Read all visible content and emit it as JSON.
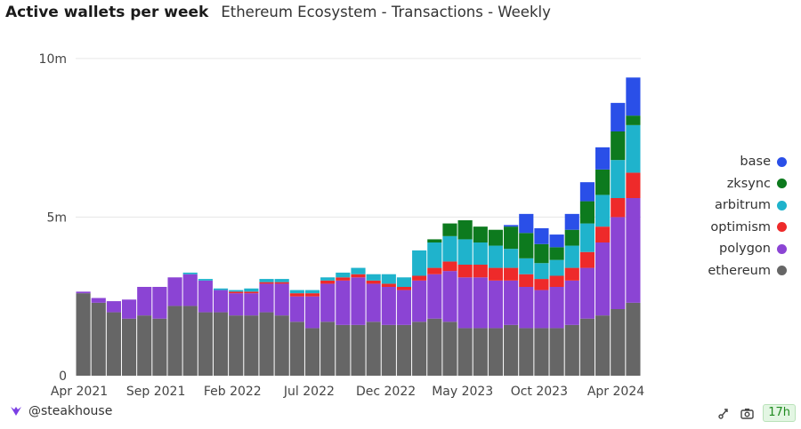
{
  "header": {
    "title": "Active wallets per week",
    "subtitle": "Ethereum Ecosystem - Transactions - Weekly"
  },
  "footer": {
    "brand": "@steakhouse",
    "brand_icon": "steakhouse-logo-icon",
    "refresh_age": "17h"
  },
  "chart_data": {
    "type": "bar",
    "stacked": true,
    "x_ticks": [
      "Apr 2021",
      "Sep 2021",
      "Feb 2022",
      "Jul 2022",
      "Dec 2022",
      "May 2023",
      "Oct 2023",
      "Apr 2024"
    ],
    "y_ticks": [
      "0",
      "5m",
      "10m"
    ],
    "y_tick_values": [
      0,
      5,
      10
    ],
    "ylim": [
      0,
      10.5
    ],
    "y_unit": "millions",
    "grid": true,
    "legend_position": "right",
    "periods": [
      "Apr 2021",
      "May 2021",
      "Jun 2021",
      "Jul 2021",
      "Aug 2021",
      "Sep 2021",
      "Oct 2021",
      "Nov 2021",
      "Dec 2021",
      "Jan 2022",
      "Feb 2022",
      "Mar 2022",
      "Apr 2022",
      "May 2022",
      "Jun 2022",
      "Jul 2022",
      "Aug 2022",
      "Sep 2022",
      "Oct 2022",
      "Nov 2022",
      "Dec 2022",
      "Jan 2023",
      "Feb 2023",
      "Mar 2023",
      "Apr 2023",
      "May 2023",
      "Jun 2023",
      "Jul 2023",
      "Aug 2023",
      "Sep 2023",
      "Oct 2023",
      "Nov 2023",
      "Dec 2023",
      "Jan 2024",
      "Feb 2024",
      "Mar 2024",
      "Apr 2024"
    ],
    "series": [
      {
        "name": "ethereum",
        "color": "#666666",
        "values": [
          2.6,
          2.3,
          2.0,
          1.8,
          1.9,
          1.8,
          2.2,
          2.2,
          2.0,
          2.0,
          1.9,
          1.9,
          2.0,
          1.9,
          1.7,
          1.5,
          1.7,
          1.6,
          1.6,
          1.7,
          1.6,
          1.6,
          1.7,
          1.8,
          1.7,
          1.5,
          1.5,
          1.5,
          1.6,
          1.5,
          1.5,
          1.5,
          1.6,
          1.8,
          1.9,
          2.1,
          2.3
        ]
      },
      {
        "name": "polygon",
        "color": "#8b44d4",
        "values": [
          0.05,
          0.15,
          0.35,
          0.6,
          0.9,
          1.0,
          0.9,
          1.0,
          1.0,
          0.7,
          0.7,
          0.7,
          0.9,
          1.0,
          0.8,
          1.0,
          1.2,
          1.4,
          1.5,
          1.2,
          1.2,
          1.1,
          1.3,
          1.4,
          1.6,
          1.6,
          1.6,
          1.5,
          1.4,
          1.3,
          1.2,
          1.3,
          1.4,
          1.6,
          2.3,
          2.9,
          3.3
        ]
      },
      {
        "name": "optimism",
        "color": "#ee2a2a",
        "values": [
          0.0,
          0.0,
          0.0,
          0.0,
          0.0,
          0.0,
          0.0,
          0.0,
          0.0,
          0.0,
          0.05,
          0.05,
          0.05,
          0.05,
          0.1,
          0.1,
          0.1,
          0.1,
          0.1,
          0.1,
          0.1,
          0.1,
          0.15,
          0.2,
          0.3,
          0.4,
          0.4,
          0.4,
          0.4,
          0.4,
          0.35,
          0.35,
          0.4,
          0.5,
          0.5,
          0.6,
          0.8
        ]
      },
      {
        "name": "arbitrum",
        "color": "#1fb3cc",
        "values": [
          0.0,
          0.0,
          0.0,
          0.0,
          0.0,
          0.0,
          0.0,
          0.05,
          0.05,
          0.05,
          0.05,
          0.1,
          0.1,
          0.1,
          0.1,
          0.1,
          0.1,
          0.15,
          0.2,
          0.2,
          0.3,
          0.3,
          0.8,
          0.8,
          0.8,
          0.8,
          0.7,
          0.7,
          0.6,
          0.5,
          0.5,
          0.5,
          0.7,
          0.9,
          1.0,
          1.2,
          1.5
        ]
      },
      {
        "name": "zksync",
        "color": "#0d7a1e",
        "values": [
          0.0,
          0.0,
          0.0,
          0.0,
          0.0,
          0.0,
          0.0,
          0.0,
          0.0,
          0.0,
          0.0,
          0.0,
          0.0,
          0.0,
          0.0,
          0.0,
          0.0,
          0.0,
          0.0,
          0.0,
          0.0,
          0.0,
          0.0,
          0.1,
          0.4,
          0.6,
          0.5,
          0.5,
          0.7,
          0.8,
          0.6,
          0.4,
          0.5,
          0.7,
          0.8,
          0.9,
          0.3
        ]
      },
      {
        "name": "base",
        "color": "#2a4fe8",
        "values": [
          0.0,
          0.0,
          0.0,
          0.0,
          0.0,
          0.0,
          0.0,
          0.0,
          0.0,
          0.0,
          0.0,
          0.0,
          0.0,
          0.0,
          0.0,
          0.0,
          0.0,
          0.0,
          0.0,
          0.0,
          0.0,
          0.0,
          0.0,
          0.0,
          0.0,
          0.0,
          0.0,
          0.0,
          0.05,
          0.6,
          0.5,
          0.4,
          0.5,
          0.6,
          0.7,
          0.9,
          1.2
        ]
      }
    ]
  }
}
